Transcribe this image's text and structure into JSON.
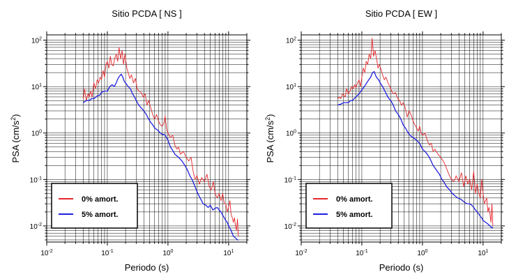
{
  "chart_data": [
    {
      "type": "line",
      "title": "Sitio PCDA [ NS ]",
      "xlabel": "Periodo (s)",
      "ylabel_base": "PSA (cm/s",
      "ylabel_sup": "2",
      "ylabel_close": ")",
      "xscale": "log",
      "yscale": "log",
      "xlim": [
        0.01,
        20
      ],
      "ylim": [
        0.0045,
        130
      ],
      "grid": true,
      "x_ticks": [
        {
          "base": "10",
          "exp": "-2",
          "v": 0.01
        },
        {
          "base": "10",
          "exp": "-1",
          "v": 0.1
        },
        {
          "base": "10",
          "exp": "0",
          "v": 1
        },
        {
          "base": "10",
          "exp": "1",
          "v": 10
        }
      ],
      "y_ticks": [
        {
          "base": "10",
          "exp": "-2",
          "v": 0.01
        },
        {
          "base": "10",
          "exp": "-1",
          "v": 0.1
        },
        {
          "base": "10",
          "exp": "0",
          "v": 1
        },
        {
          "base": "10",
          "exp": "1",
          "v": 10
        },
        {
          "base": "10",
          "exp": "2",
          "v": 100
        }
      ],
      "legend_position": "bottom-left",
      "series": [
        {
          "name": "0% amort.",
          "color": "#e8262b",
          "x": [
            0.04,
            0.042,
            0.045,
            0.048,
            0.05,
            0.053,
            0.056,
            0.06,
            0.064,
            0.068,
            0.072,
            0.076,
            0.08,
            0.085,
            0.09,
            0.095,
            0.1,
            0.106,
            0.112,
            0.118,
            0.125,
            0.132,
            0.14,
            0.148,
            0.156,
            0.165,
            0.175,
            0.185,
            0.195,
            0.21,
            0.22,
            0.235,
            0.25,
            0.27,
            0.29,
            0.31,
            0.33,
            0.36,
            0.39,
            0.42,
            0.45,
            0.48,
            0.52,
            0.56,
            0.6,
            0.65,
            0.7,
            0.75,
            0.8,
            0.85,
            0.9,
            0.95,
            1.0,
            1.1,
            1.2,
            1.3,
            1.4,
            1.5,
            1.6,
            1.8,
            2.0,
            2.2,
            2.4,
            2.6,
            2.8,
            3.0,
            3.3,
            3.6,
            4.0,
            4.4,
            4.8,
            5.2,
            5.6,
            6.0,
            6.5,
            7.0,
            7.5,
            8.0,
            8.5,
            9.0,
            9.5,
            10,
            10.5,
            11,
            11.5,
            12,
            12.5,
            13,
            13.5,
            14,
            14.5
          ],
          "y": [
            5.5,
            9.0,
            5.0,
            7.0,
            6.0,
            8.0,
            6.0,
            12.0,
            9.0,
            14.0,
            12.0,
            16.0,
            14.0,
            22.0,
            16.0,
            30.0,
            35.0,
            25.0,
            45.0,
            30.0,
            28.0,
            40.0,
            50.0,
            35.0,
            70.0,
            40.0,
            60.0,
            30.0,
            50.0,
            25.0,
            20.0,
            15.0,
            18.0,
            12.0,
            15.0,
            9.0,
            8.0,
            7.5,
            6.0,
            7.0,
            4.0,
            5.0,
            3.5,
            2.5,
            2.0,
            2.5,
            1.8,
            1.5,
            1.4,
            1.6,
            2.3,
            1.2,
            1.0,
            0.8,
            0.9,
            0.55,
            0.45,
            0.5,
            0.35,
            0.4,
            0.3,
            0.25,
            0.3,
            0.15,
            0.1,
            0.12,
            0.08,
            0.11,
            0.09,
            0.13,
            0.07,
            0.06,
            0.09,
            0.05,
            0.04,
            0.05,
            0.035,
            0.05,
            0.03,
            0.03,
            0.02,
            0.025,
            0.035,
            0.018,
            0.015,
            0.012,
            0.015,
            0.01,
            0.008,
            0.014,
            0.006
          ]
        },
        {
          "name": "5% amort.",
          "color": "#1f1fe0",
          "x": [
            0.04,
            0.045,
            0.05,
            0.055,
            0.06,
            0.065,
            0.07,
            0.075,
            0.08,
            0.09,
            0.1,
            0.11,
            0.12,
            0.13,
            0.14,
            0.15,
            0.16,
            0.17,
            0.18,
            0.19,
            0.2,
            0.22,
            0.24,
            0.26,
            0.28,
            0.3,
            0.33,
            0.36,
            0.4,
            0.44,
            0.48,
            0.52,
            0.56,
            0.6,
            0.65,
            0.7,
            0.75,
            0.8,
            0.9,
            1.0,
            1.1,
            1.2,
            1.3,
            1.5,
            1.7,
            1.9,
            2.1,
            2.3,
            2.5,
            2.8,
            3.1,
            3.4,
            3.8,
            4.2,
            4.6,
            5.0,
            5.5,
            6.0,
            6.5,
            7.0,
            7.5,
            8.0,
            8.5,
            9.0,
            9.5,
            10,
            11,
            12,
            13,
            14,
            14.5
          ],
          "y": [
            4.5,
            5.0,
            5.0,
            5.5,
            5.5,
            6.0,
            6.5,
            6.5,
            7.5,
            8.0,
            8.0,
            10.0,
            11.0,
            10.0,
            12.0,
            15.0,
            17.0,
            18.5,
            16.0,
            13.0,
            12.0,
            10.0,
            9.0,
            7.0,
            6.0,
            5.0,
            4.0,
            3.5,
            3.0,
            2.5,
            2.0,
            1.7,
            1.5,
            1.3,
            1.2,
            1.1,
            1.0,
            0.95,
            0.9,
            0.7,
            0.5,
            0.42,
            0.35,
            0.3,
            0.25,
            0.2,
            0.16,
            0.12,
            0.1,
            0.07,
            0.05,
            0.04,
            0.03,
            0.028,
            0.025,
            0.028,
            0.022,
            0.024,
            0.025,
            0.022,
            0.02,
            0.017,
            0.015,
            0.013,
            0.012,
            0.01,
            0.008,
            0.006,
            0.0055,
            0.005,
            0.005
          ]
        }
      ]
    },
    {
      "type": "line",
      "title": "Sitio PCDA [ EW ]",
      "xlabel": "Periodo (s)",
      "ylabel_base": "PSA (cm/s",
      "ylabel_sup": "2",
      "ylabel_close": ")",
      "xscale": "log",
      "yscale": "log",
      "xlim": [
        0.01,
        20
      ],
      "ylim": [
        0.0045,
        130
      ],
      "grid": true,
      "x_ticks": [
        {
          "base": "10",
          "exp": "-2",
          "v": 0.01
        },
        {
          "base": "10",
          "exp": "-1",
          "v": 0.1
        },
        {
          "base": "10",
          "exp": "0",
          "v": 1
        },
        {
          "base": "10",
          "exp": "1",
          "v": 10
        }
      ],
      "y_ticks": [
        {
          "base": "10",
          "exp": "-2",
          "v": 0.01
        },
        {
          "base": "10",
          "exp": "-1",
          "v": 0.1
        },
        {
          "base": "10",
          "exp": "0",
          "v": 1
        },
        {
          "base": "10",
          "exp": "1",
          "v": 10
        },
        {
          "base": "10",
          "exp": "2",
          "v": 100
        }
      ],
      "legend_position": "bottom-left",
      "series": [
        {
          "name": "0% amort.",
          "color": "#e8262b",
          "x": [
            0.04,
            0.042,
            0.045,
            0.048,
            0.05,
            0.053,
            0.056,
            0.06,
            0.064,
            0.068,
            0.072,
            0.076,
            0.08,
            0.085,
            0.09,
            0.095,
            0.1,
            0.106,
            0.112,
            0.118,
            0.125,
            0.132,
            0.14,
            0.148,
            0.156,
            0.165,
            0.175,
            0.185,
            0.195,
            0.21,
            0.22,
            0.235,
            0.25,
            0.27,
            0.29,
            0.31,
            0.33,
            0.36,
            0.39,
            0.42,
            0.45,
            0.48,
            0.52,
            0.56,
            0.6,
            0.65,
            0.7,
            0.75,
            0.8,
            0.85,
            0.9,
            0.95,
            1.0,
            1.1,
            1.2,
            1.3,
            1.4,
            1.5,
            1.6,
            1.8,
            2.0,
            2.2,
            2.4,
            2.6,
            2.8,
            3.0,
            3.3,
            3.6,
            4.0,
            4.4,
            4.8,
            5.2,
            5.6,
            6.0,
            6.5,
            7.0,
            7.5,
            8.0,
            8.5,
            9.0,
            9.5,
            10,
            10.5,
            11,
            11.5,
            12,
            12.5,
            13,
            13.5,
            14,
            14.5
          ],
          "y": [
            5.5,
            6.0,
            5.5,
            7.0,
            6.5,
            6.0,
            9.0,
            7.0,
            8.0,
            10.0,
            9.0,
            11.0,
            9.5,
            12.0,
            14.0,
            10.0,
            16.0,
            25.0,
            20.0,
            35.0,
            30.0,
            50.0,
            40.0,
            110.0,
            45.0,
            60.0,
            40.0,
            25.0,
            30.0,
            22.0,
            18.0,
            14.0,
            16.0,
            12.0,
            10.0,
            8.0,
            7.0,
            7.5,
            5.5,
            5.0,
            4.0,
            4.5,
            3.5,
            2.2,
            3.0,
            2.5,
            1.8,
            1.5,
            1.3,
            1.1,
            1.4,
            1.0,
            0.9,
            1.0,
            0.7,
            0.55,
            0.6,
            0.4,
            0.45,
            0.35,
            0.3,
            0.25,
            0.2,
            0.15,
            0.12,
            0.1,
            0.09,
            0.12,
            0.09,
            0.14,
            0.07,
            0.12,
            0.08,
            0.1,
            0.06,
            0.15,
            0.05,
            0.08,
            0.05,
            0.04,
            0.1,
            0.05,
            0.03,
            0.035,
            0.04,
            0.02,
            0.025,
            0.018,
            0.012,
            0.03,
            0.01
          ]
        },
        {
          "name": "5% amort.",
          "color": "#1f1fe0",
          "x": [
            0.04,
            0.045,
            0.05,
            0.055,
            0.06,
            0.065,
            0.07,
            0.075,
            0.08,
            0.09,
            0.1,
            0.11,
            0.12,
            0.13,
            0.14,
            0.15,
            0.16,
            0.17,
            0.18,
            0.19,
            0.2,
            0.22,
            0.24,
            0.26,
            0.28,
            0.3,
            0.33,
            0.36,
            0.4,
            0.44,
            0.48,
            0.52,
            0.56,
            0.6,
            0.65,
            0.7,
            0.75,
            0.8,
            0.9,
            1.0,
            1.1,
            1.2,
            1.3,
            1.5,
            1.7,
            1.9,
            2.1,
            2.3,
            2.5,
            2.8,
            3.1,
            3.4,
            3.8,
            4.2,
            4.6,
            5.0,
            5.5,
            6.0,
            6.5,
            7.0,
            7.5,
            8.0,
            8.5,
            9.0,
            9.5,
            10,
            11,
            12,
            13,
            14,
            14.5
          ],
          "y": [
            4.0,
            4.2,
            4.5,
            4.5,
            4.5,
            5.0,
            5.0,
            5.5,
            6.0,
            7.0,
            8.5,
            10.0,
            12.0,
            14.0,
            16.0,
            20.0,
            21.0,
            17.0,
            15.0,
            14.0,
            12.0,
            10.0,
            8.0,
            6.5,
            5.5,
            5.0,
            4.0,
            3.0,
            2.5,
            2.0,
            1.5,
            1.3,
            1.1,
            0.95,
            0.85,
            0.8,
            0.75,
            0.7,
            0.6,
            0.45,
            0.4,
            0.35,
            0.3,
            0.2,
            0.16,
            0.13,
            0.1,
            0.085,
            0.07,
            0.06,
            0.05,
            0.045,
            0.04,
            0.038,
            0.035,
            0.032,
            0.03,
            0.03,
            0.028,
            0.025,
            0.022,
            0.02,
            0.018,
            0.016,
            0.015,
            0.013,
            0.012,
            0.011,
            0.01,
            0.009,
            0.0095
          ]
        }
      ]
    }
  ]
}
